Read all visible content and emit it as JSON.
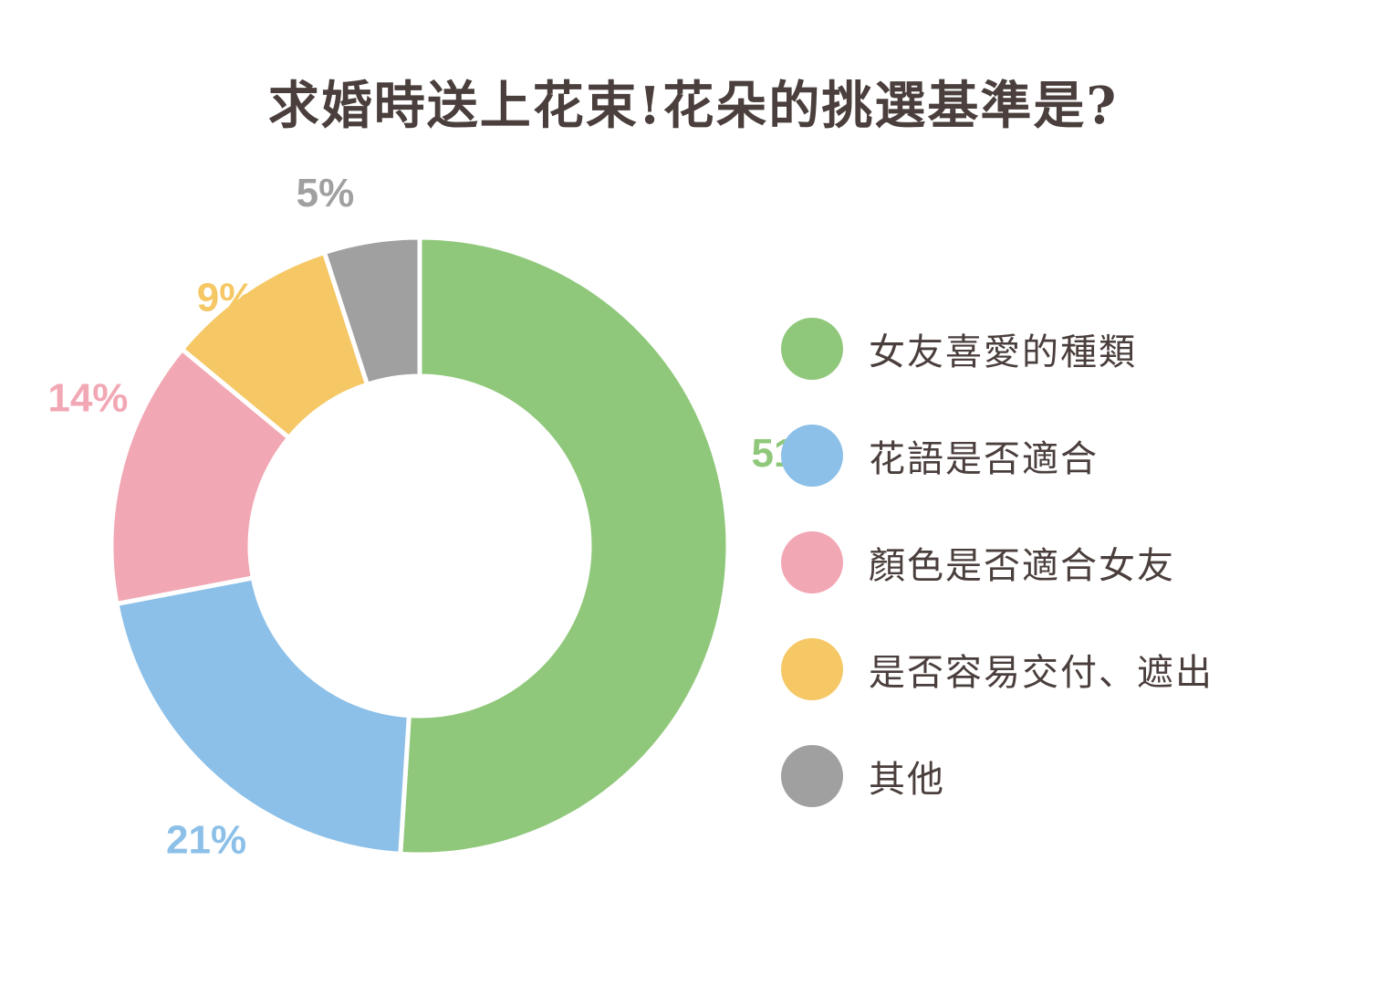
{
  "chart_data": {
    "type": "pie",
    "variant": "donut",
    "title": "求婚時送上花束!花朵的挑選基準是?",
    "categories": [
      "女友喜愛的種類",
      "花語是否適合",
      "顏色是否適合女友",
      "是否容易交付、遮出",
      "其他"
    ],
    "values": [
      51,
      21,
      14,
      9,
      5
    ],
    "data_labels": [
      "51%",
      "21%",
      "14%",
      "9%",
      "5%"
    ],
    "colors": [
      "#90c87b",
      "#8cc0e8",
      "#f2a8b4",
      "#f5c865",
      "#a0a0a0"
    ],
    "legend_position": "right",
    "unit": "%"
  }
}
